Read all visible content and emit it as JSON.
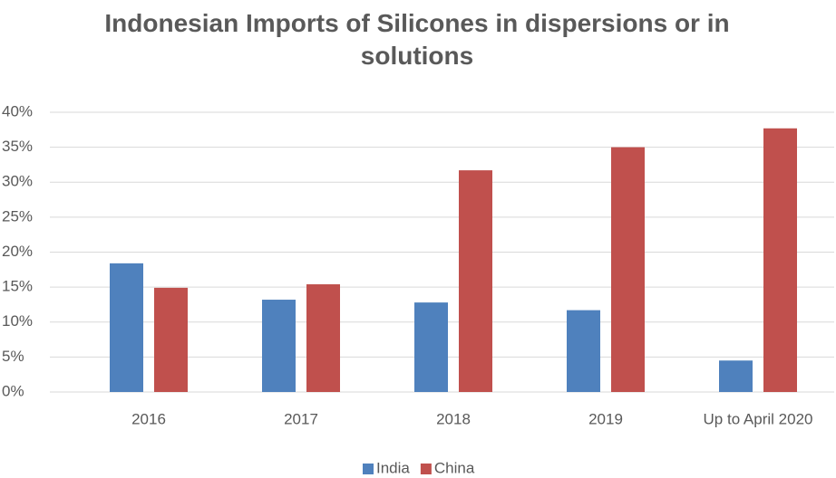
{
  "chart_data": {
    "type": "bar",
    "title": "Indonesian Imports of Silicones in dispersions or in solutions",
    "categories": [
      "2016",
      "2017",
      "2018",
      "2019",
      "Up to April 2020"
    ],
    "series": [
      {
        "name": "India",
        "color": "#4f81bd",
        "values": [
          18.4,
          13.2,
          12.8,
          11.7,
          4.5
        ]
      },
      {
        "name": "China",
        "color": "#c0504d",
        "values": [
          14.9,
          15.4,
          31.7,
          35.0,
          37.7
        ]
      }
    ],
    "ylim": [
      0,
      40
    ],
    "yticks": [
      {
        "value": 0,
        "label": "0%"
      },
      {
        "value": 5,
        "label": "5%"
      },
      {
        "value": 10,
        "label": "10%"
      },
      {
        "value": 15,
        "label": "15%"
      },
      {
        "value": 20,
        "label": "20%"
      },
      {
        "value": 25,
        "label": "25%"
      },
      {
        "value": 30,
        "label": "30%"
      },
      {
        "value": 35,
        "label": "35%"
      },
      {
        "value": 40,
        "label": "40%"
      }
    ],
    "grid": true,
    "legend": "bottom"
  }
}
